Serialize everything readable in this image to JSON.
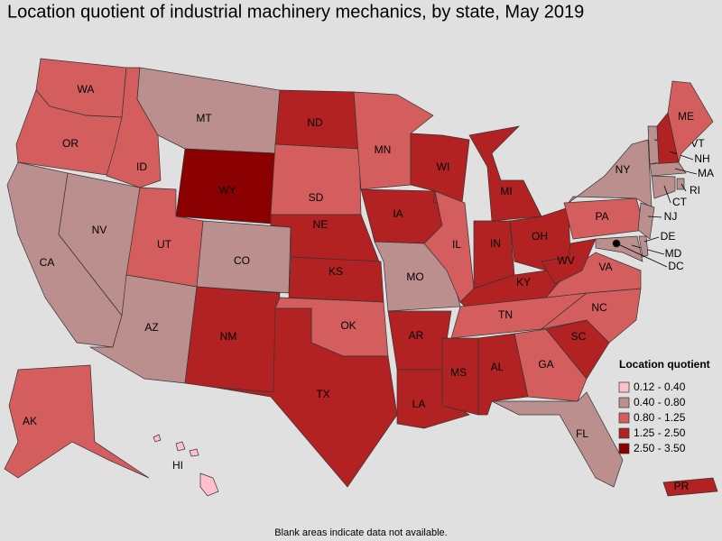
{
  "title": "Location quotient of industrial machinery mechanics, by state, May 2019",
  "states": [
    {
      "label": "WA",
      "color": "#d45d5d"
    },
    {
      "label": "OR",
      "color": "#d45d5d"
    },
    {
      "label": "CA",
      "color": "#bc8f8f"
    },
    {
      "label": "NV",
      "color": "#bc8f8f"
    },
    {
      "label": "ID",
      "color": "#d45d5d"
    },
    {
      "label": "MT",
      "color": "#bc8f8f"
    },
    {
      "label": "WY",
      "color": "#8b0000"
    },
    {
      "label": "UT",
      "color": "#d45d5d"
    },
    {
      "label": "CO",
      "color": "#bc8f8f"
    },
    {
      "label": "AZ",
      "color": "#bc8f8f"
    },
    {
      "label": "NM",
      "color": "#b22222"
    },
    {
      "label": "ND",
      "color": "#b22222"
    },
    {
      "label": "SD",
      "color": "#d45d5d"
    },
    {
      "label": "NE",
      "color": "#b22222"
    },
    {
      "label": "KS",
      "color": "#b22222"
    },
    {
      "label": "OK",
      "color": "#d45d5d"
    },
    {
      "label": "TX",
      "color": "#b22222"
    },
    {
      "label": "MN",
      "color": "#d45d5d"
    },
    {
      "label": "IA",
      "color": "#b22222"
    },
    {
      "label": "MO",
      "color": "#bc8f8f"
    },
    {
      "label": "AR",
      "color": "#b22222"
    },
    {
      "label": "LA",
      "color": "#b22222"
    },
    {
      "label": "WI",
      "color": "#b22222"
    },
    {
      "label": "IL",
      "color": "#d45d5d"
    },
    {
      "label": "MI",
      "color": "#b22222"
    },
    {
      "label": "IN",
      "color": "#b22222"
    },
    {
      "label": "OH",
      "color": "#b22222"
    },
    {
      "label": "KY",
      "color": "#b22222"
    },
    {
      "label": "TN",
      "color": "#d45d5d"
    },
    {
      "label": "MS",
      "color": "#b22222"
    },
    {
      "label": "AL",
      "color": "#b22222"
    },
    {
      "label": "GA",
      "color": "#d45d5d"
    },
    {
      "label": "FL",
      "color": "#bc8f8f"
    },
    {
      "label": "SC",
      "color": "#b22222"
    },
    {
      "label": "NC",
      "color": "#d45d5d"
    },
    {
      "label": "VA",
      "color": "#d45d5d"
    },
    {
      "label": "WV",
      "color": "#b22222"
    },
    {
      "label": "PA",
      "color": "#d45d5d"
    },
    {
      "label": "NY",
      "color": "#bc8f8f"
    },
    {
      "label": "NJ",
      "color": "#bc8f8f"
    },
    {
      "label": "MD",
      "color": "#bc8f8f"
    },
    {
      "label": "DE",
      "color": "#bc8f8f"
    },
    {
      "label": "VT",
      "color": "#bc8f8f"
    },
    {
      "label": "NH",
      "color": "#b22222"
    },
    {
      "label": "ME",
      "color": "#d45d5d"
    },
    {
      "label": "MA",
      "color": "#bc8f8f"
    },
    {
      "label": "RI",
      "color": "#bc8f8f"
    },
    {
      "label": "CT",
      "color": "#bc8f8f"
    },
    {
      "label": "DC",
      "color": "#000000"
    },
    {
      "label": "AK",
      "color": "#d45d5d"
    },
    {
      "label": "HI",
      "color": "#ffc0cb"
    },
    {
      "label": "PR",
      "color": "#b22222"
    }
  ],
  "legend": {
    "title": "Location quotient",
    "items": [
      {
        "label": "0.12 - 0.40",
        "color": "#ffc0cb"
      },
      {
        "label": "0.40 - 0.80",
        "color": "#bc8f8f"
      },
      {
        "label": "0.80 - 1.25",
        "color": "#d45d5d"
      },
      {
        "label": "1.25 - 2.50",
        "color": "#b22222"
      },
      {
        "label": "2.50 - 3.50",
        "color": "#8b0000"
      }
    ]
  },
  "note": "Blank areas indicate data not available."
}
